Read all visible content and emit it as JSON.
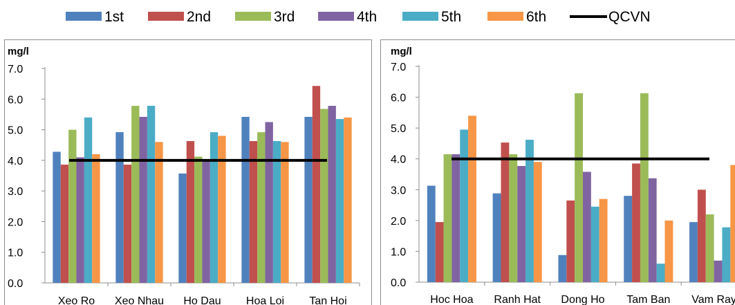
{
  "legend": {
    "items": [
      {
        "label": "1st",
        "color": "#4F81BD"
      },
      {
        "label": "2nd",
        "color": "#C0504D"
      },
      {
        "label": "3rd",
        "color": "#9BBB59"
      },
      {
        "label": "4th",
        "color": "#8064A2"
      },
      {
        "label": "5th",
        "color": "#4BACC6"
      },
      {
        "label": "6th",
        "color": "#F79646"
      }
    ],
    "line_label": "QCVN",
    "line_color": "#000000"
  },
  "chart_data": [
    {
      "type": "bar",
      "ylabel": "mg/l",
      "ylim": [
        0,
        7
      ],
      "yticks": [
        "0.0",
        "1.0",
        "2.0",
        "3.0",
        "4.0",
        "5.0",
        "6.0",
        "7.0"
      ],
      "categories": [
        "Xeo Ro",
        "Xeo Nhau",
        "Ho Dau",
        "Hoa Loi",
        "Tan Hoi"
      ],
      "series": [
        {
          "name": "1st",
          "values": [
            4.28,
            4.92,
            3.57,
            5.42,
            5.42
          ]
        },
        {
          "name": "2nd",
          "values": [
            3.86,
            3.86,
            4.63,
            4.63,
            6.43
          ]
        },
        {
          "name": "3rd",
          "values": [
            5.0,
            5.78,
            4.12,
            4.92,
            5.68
          ]
        },
        {
          "name": "4th",
          "values": [
            4.1,
            5.42,
            4.0,
            5.25,
            5.78
          ]
        },
        {
          "name": "5th",
          "values": [
            5.4,
            5.78,
            4.92,
            4.63,
            5.35
          ]
        },
        {
          "name": "6th",
          "values": [
            4.2,
            4.6,
            4.8,
            4.6,
            5.4
          ]
        }
      ],
      "reference_line": {
        "name": "QCVN",
        "value": 4.0
      },
      "grid": false
    },
    {
      "type": "bar",
      "ylabel": "mg/l",
      "ylim": [
        0,
        7
      ],
      "yticks": [
        "0.0",
        "1.0",
        "2.0",
        "3.0",
        "4.0",
        "5.0",
        "6.0",
        "7.0"
      ],
      "categories": [
        "Hoc Hoa",
        "Ranh Hat",
        "Dong Ho",
        "Tam Ban",
        "Vam Ray"
      ],
      "series": [
        {
          "name": "1st",
          "values": [
            3.13,
            2.88,
            0.88,
            2.8,
            1.95
          ]
        },
        {
          "name": "2nd",
          "values": [
            1.95,
            4.53,
            2.65,
            3.85,
            3.0
          ]
        },
        {
          "name": "3rd",
          "values": [
            4.15,
            4.15,
            6.13,
            6.13,
            2.2
          ]
        },
        {
          "name": "4th",
          "values": [
            4.15,
            3.77,
            3.58,
            3.37,
            0.7
          ]
        },
        {
          "name": "5th",
          "values": [
            4.95,
            4.62,
            2.45,
            0.6,
            1.78
          ]
        },
        {
          "name": "6th",
          "values": [
            5.4,
            3.9,
            2.7,
            2.0,
            3.8
          ]
        }
      ],
      "reference_line": {
        "name": "QCVN",
        "value": 4.0
      },
      "grid": false
    }
  ]
}
